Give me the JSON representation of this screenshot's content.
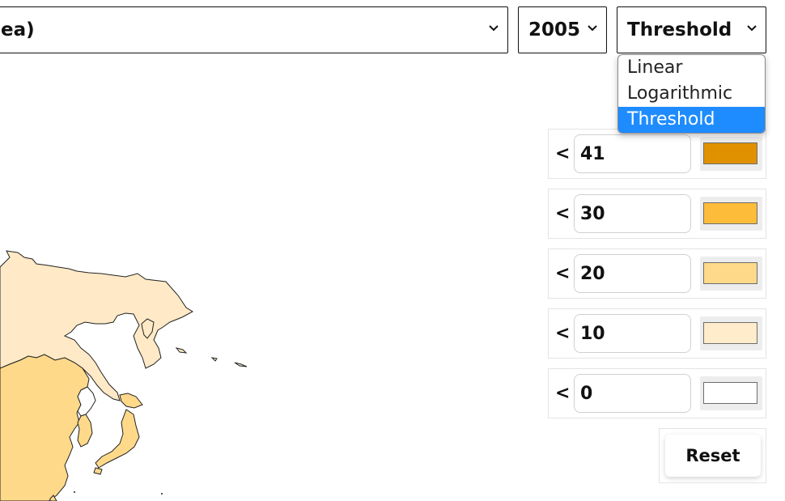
{
  "controls": {
    "dataset_select": {
      "value": "ea)"
    },
    "year_select": {
      "value": "2005"
    },
    "scale_select": {
      "value": "Threshold",
      "options": [
        "Linear",
        "Logarithmic",
        "Threshold"
      ],
      "selected_option": "Threshold"
    }
  },
  "legend": {
    "rows": [
      {
        "symbol": "<",
        "value": "41",
        "color": "#e09100"
      },
      {
        "symbol": "<",
        "value": "30",
        "color": "#fdbc3a"
      },
      {
        "symbol": "<",
        "value": "20",
        "color": "#fed98a"
      },
      {
        "symbol": "<",
        "value": "10",
        "color": "#ffeccb"
      },
      {
        "symbol": "<",
        "value": "0",
        "color": "#ffffff"
      }
    ],
    "reset_label": "Reset"
  },
  "map": {
    "region_colors": {
      "light": "#ffe9c6",
      "medium": "#fed98a",
      "outline": "#222222"
    }
  }
}
